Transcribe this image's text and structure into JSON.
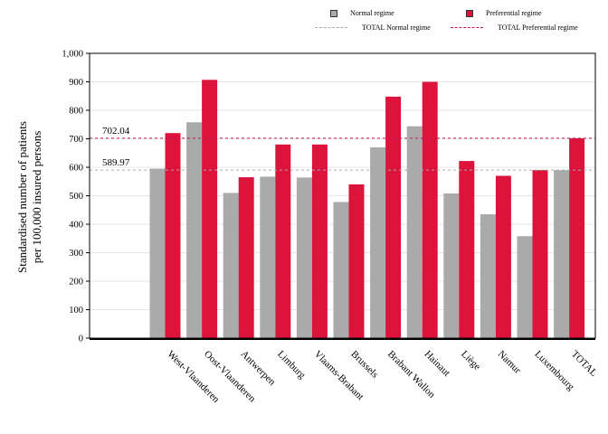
{
  "legend": {
    "normal": "Normal regime",
    "preferential": "Preferential regime",
    "total_normal": "TOTAL Normal regime",
    "total_preferential": "TOTAL Preferential regime"
  },
  "colors": {
    "normal": "#aaaaaa",
    "preferential": "#dc143c",
    "total_normal_line": "#aaaaaa",
    "total_preferential_line": "#c2185b"
  },
  "chart_data": {
    "type": "bar",
    "title": "",
    "xlabel": "",
    "ylabel_lines": [
      "Standardised number of patients",
      "per 100,000 insured persons"
    ],
    "ylim": [
      0,
      1000
    ],
    "yticks": [
      0,
      100,
      200,
      300,
      400,
      500,
      600,
      700,
      800,
      900,
      1000
    ],
    "ytick_labels": [
      "0",
      "100",
      "200",
      "300",
      "400",
      "500",
      "600",
      "700",
      "800",
      "900",
      "1,000"
    ],
    "categories": [
      "West-Vlaanderen",
      "Oost-Vlaanderen",
      "Antwerpen",
      "Limburg",
      "Vlaams-Brabant",
      "Brussels",
      "Brabant Wallon",
      "Hainaut",
      "Liège",
      "Namur",
      "Luxembourg",
      "TOTAL"
    ],
    "series": [
      {
        "name": "Normal regime",
        "values": [
          595,
          758,
          510,
          567,
          564,
          478,
          670,
          744,
          508,
          435,
          358,
          590
        ]
      },
      {
        "name": "Preferential regime",
        "values": [
          720,
          907,
          565,
          680,
          680,
          540,
          848,
          900,
          622,
          570,
          590,
          702
        ]
      }
    ],
    "reference_lines": [
      {
        "name": "TOTAL Normal regime",
        "value": 589.97,
        "label": "589.97"
      },
      {
        "name": "TOTAL Preferential regime",
        "value": 702.04,
        "label": "702.04"
      }
    ],
    "grid": true,
    "legend_position": "top-right"
  }
}
